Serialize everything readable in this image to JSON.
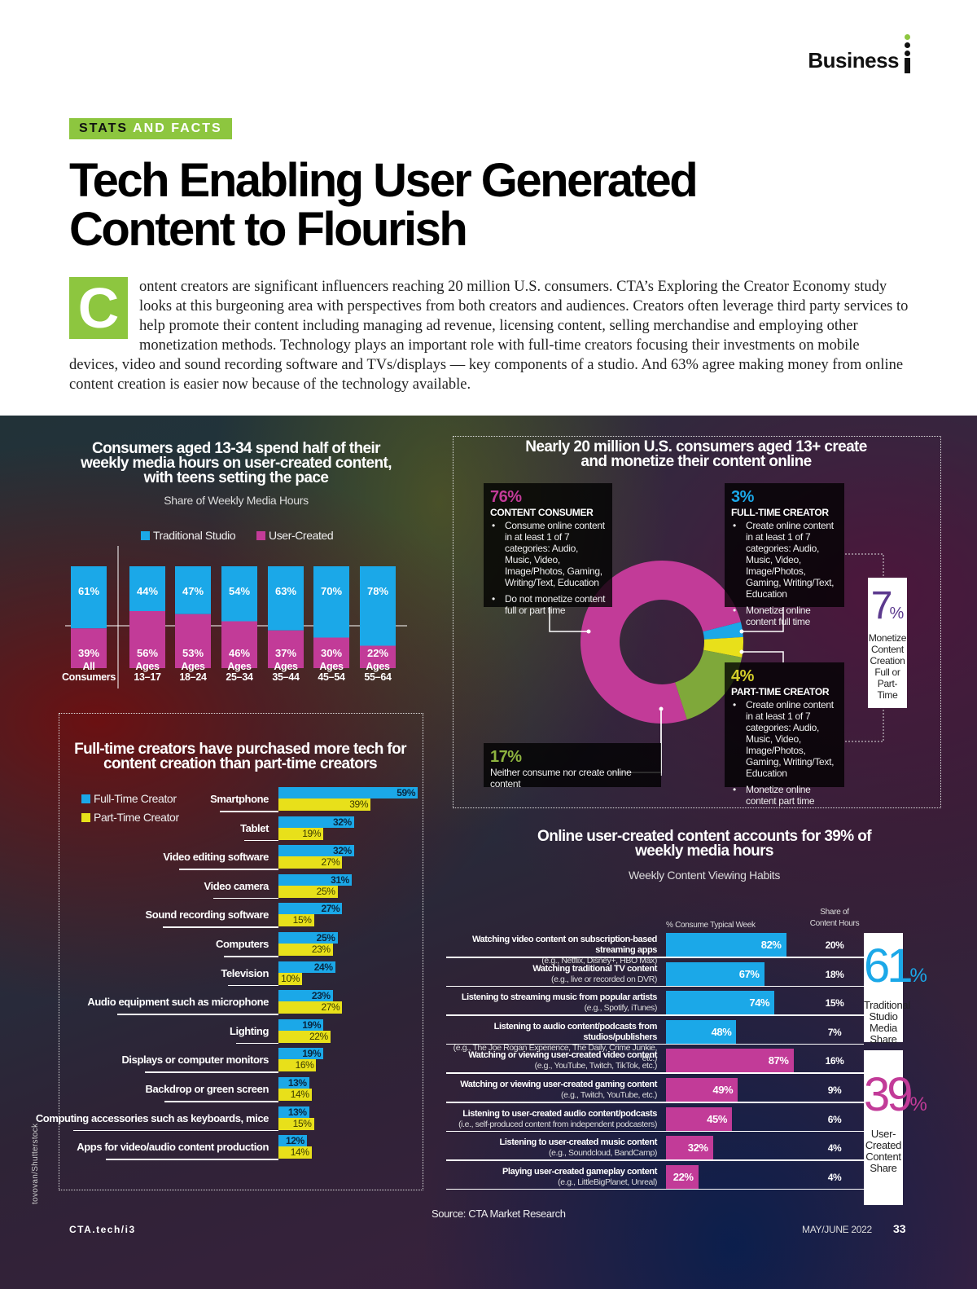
{
  "header": {
    "brand": "Business",
    "section_kicker_1": "STATS",
    "section_kicker_2": "AND FACTS",
    "title_line1": "Tech Enabling User Generated",
    "title_line2": "Content to Flourish",
    "dropcap": "C",
    "intro": "ontent creators are significant influencers reaching 20 million U.S. consumers. CTA’s Exploring the Creator Economy study looks at this burgeoning area with perspectives from both creators and audiences. Creators often leverage third party services to help promote their content including managing ad revenue, licensing content, selling merchandise and employing other monetization methods. Technology plays an important role with full-time creators focusing their investments on mobile devices, video and sound recording software and TVs/displays — key components of a studio. And 63% agree making money from online content creation is easier now because of the technology available."
  },
  "colors": {
    "accent_green": "#8dc63f",
    "traditional_blue": "#1ba8e8",
    "user_magenta": "#c23b98",
    "part_time_yellow": "#e8e01a",
    "neither_green": "#7fa83a"
  },
  "chart_data": [
    {
      "id": "media-hours",
      "type": "bar",
      "stacked": true,
      "title": "Consumers aged 13-34 spend half of their weekly media hours on user-created content, with teens setting the pace",
      "subtitle": "Share of Weekly Media Hours",
      "legend": [
        "Traditional Studio",
        "User-Created"
      ],
      "legend_position": "top",
      "categories": [
        [
          "All",
          "Consumers"
        ],
        [
          "Ages",
          "13–17"
        ],
        [
          "Ages",
          "18–24"
        ],
        [
          "Ages",
          "25–34"
        ],
        [
          "Ages",
          "35–44"
        ],
        [
          "Ages",
          "45–54"
        ],
        [
          "Ages",
          "55–64"
        ]
      ],
      "series": [
        {
          "name": "Traditional Studio",
          "values": [
            61,
            44,
            47,
            54,
            63,
            70,
            78
          ]
        },
        {
          "name": "User-Created",
          "values": [
            39,
            56,
            53,
            46,
            37,
            30,
            22
          ]
        }
      ],
      "unit": "%",
      "ylim": [
        0,
        100
      ]
    },
    {
      "id": "creators-donut",
      "type": "pie",
      "donut": true,
      "title": "Nearly 20 million U.S. consumers aged 13+ create and monetize their content online",
      "slices": [
        {
          "pct": "76%",
          "value": 76,
          "label": "CONTENT CONSUMER",
          "bullets": [
            "Consume online content in at least 1 of 7 categories: Audio, Music, Video, Image/Photos, Gaming, Writing/Text, Education",
            "Do not monetize content full or part time"
          ]
        },
        {
          "pct": "3%",
          "value": 3,
          "label": "FULL-TIME CREATOR",
          "bullets": [
            "Create online content in at least 1 of 7 categories: Audio, Music, Video, Image/Photos, Gaming, Writing/Text, Education",
            "Monetize online content full time"
          ]
        },
        {
          "pct": "4%",
          "value": 4,
          "label": "PART-TIME CREATOR",
          "bullets": [
            "Create online content in at least 1 of 7 categories: Audio, Music, Video, Image/Photos, Gaming, Writing/Text, Education",
            "Monetize online content part time"
          ]
        },
        {
          "pct": "17%",
          "value": 17,
          "label": "Neither consume nor create online content",
          "bullets": []
        }
      ],
      "callout": {
        "pct": "7",
        "pct_sign": "%",
        "text": [
          "Monetize",
          "Content",
          "Creation",
          "Full or",
          "Part-Time"
        ]
      }
    },
    {
      "id": "tech-purchases",
      "type": "bar",
      "orientation": "horizontal",
      "title": "Full-time creators have purchased more tech for content creation than part-time creators",
      "legend": [
        "Full-Time Creator",
        "Part-Time Creator"
      ],
      "legend_position": "top-left",
      "categories": [
        "Smartphone",
        "Tablet",
        "Video editing software",
        "Video camera",
        "Sound recording software",
        "Computers",
        "Television",
        "Audio equipment such as microphone",
        "Lighting",
        "Displays or computer monitors",
        "Backdrop or green screen",
        "Computing accessories such as keyboards, mice",
        "Apps for video/audio content production"
      ],
      "series": [
        {
          "name": "Full-Time Creator",
          "values": [
            59,
            32,
            32,
            31,
            27,
            25,
            24,
            23,
            19,
            19,
            13,
            13,
            12
          ]
        },
        {
          "name": "Part-Time Creator",
          "values": [
            39,
            19,
            27,
            25,
            15,
            23,
            10,
            27,
            22,
            16,
            14,
            15,
            14
          ]
        }
      ],
      "unit": "%"
    },
    {
      "id": "viewing-habits",
      "type": "bar",
      "orientation": "horizontal",
      "title": "Online user-created content accounts for 39% of weekly media hours",
      "subtitle": "Weekly Content Viewing Habits",
      "column_headers": [
        "% Consume Typical Week",
        "Share of Content Hours"
      ],
      "rows": [
        {
          "label": "Watching video content on subscription-based streaming apps",
          "example": "(e.g., Netflix, Disney+, HBO Max)",
          "consume": 82,
          "share": 20,
          "group": "traditional"
        },
        {
          "label": "Watching traditional TV content",
          "example": "(e.g., live or recorded on DVR)",
          "consume": 67,
          "share": 18,
          "group": "traditional"
        },
        {
          "label": "Listening to streaming music from popular artists",
          "example": "(e.g., Spotify, iTunes)",
          "consume": 74,
          "share": 15,
          "group": "traditional"
        },
        {
          "label": "Listening to audio content/podcasts from studios/publishers",
          "example": "(e.g., The Joe Rogan Experience, The Daily, Crime Junkie, etc.)",
          "consume": 48,
          "share": 7,
          "group": "traditional"
        },
        {
          "label": "Watching or viewing user-created video content",
          "example": "(e.g., YouTube, Twitch, TikTok, etc.)",
          "consume": 87,
          "share": 16,
          "group": "user"
        },
        {
          "label": "Watching or viewing user-created gaming content",
          "example": "(e.g., Twitch, YouTube, etc.)",
          "consume": 49,
          "share": 9,
          "group": "user"
        },
        {
          "label": "Listening to user-created audio content/podcasts",
          "example": "(i.e., self-produced content from independent podcasters)",
          "consume": 45,
          "share": 6,
          "group": "user"
        },
        {
          "label": "Listening to user-created music content",
          "example": "(e.g., Soundcloud, BandCamp)",
          "consume": 32,
          "share": 4,
          "group": "user"
        },
        {
          "label": "Playing user-created gameplay content",
          "example": "(e.g., LittleBigPlanet, Unreal)",
          "consume": 22,
          "share": 4,
          "group": "user"
        }
      ],
      "group_totals": [
        {
          "group": "traditional",
          "pct": "61",
          "text": [
            "Traditional",
            "Studio",
            "Media",
            "Share"
          ]
        },
        {
          "group": "user",
          "pct": "39",
          "text": [
            "User-",
            "Created",
            "Content",
            "Share"
          ]
        }
      ],
      "unit": "%"
    }
  ],
  "footer": {
    "source": "Source: CTA Market Research",
    "site": "CTA.tech/i3",
    "issue": "MAY/JUNE 2022",
    "page": "33",
    "credit": "tovovan/Shutterstock"
  }
}
